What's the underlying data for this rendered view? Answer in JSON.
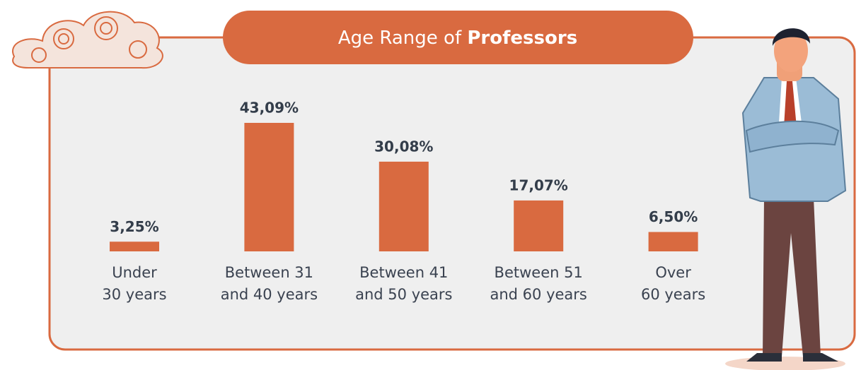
{
  "chart_data": {
    "type": "bar",
    "title": [
      "Age Range of",
      "Professors"
    ],
    "categories": [
      [
        "Under",
        "30 years"
      ],
      [
        "Between 31",
        "and 40 years"
      ],
      [
        "Between 41",
        "and 50 years"
      ],
      [
        "Between 51",
        "and 60 years"
      ],
      [
        "Over",
        "60 years"
      ]
    ],
    "values": [
      3.25,
      43.09,
      30.08,
      17.07,
      6.5
    ],
    "value_labels": [
      "3,25%",
      "43,09%",
      "30,08%",
      "17,07%",
      "6,50%"
    ],
    "color": "#d96a40"
  }
}
